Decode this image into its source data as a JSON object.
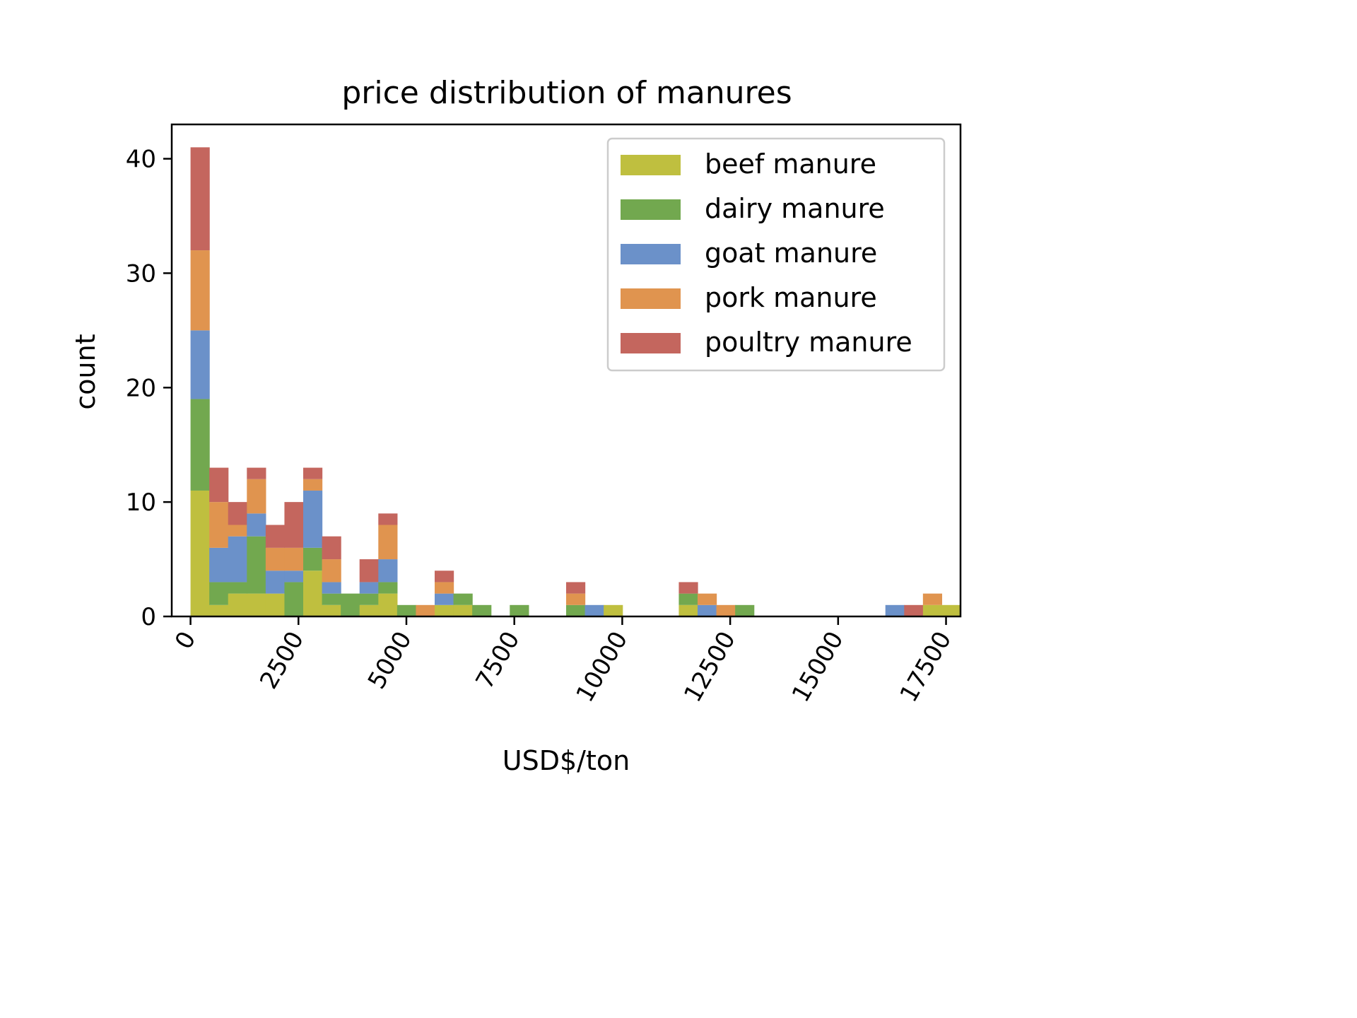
{
  "chart_data": {
    "type": "bar",
    "stacked": true,
    "histogram": true,
    "title": "price distribution of manures",
    "xlabel": "USD$/ton",
    "ylabel": "count",
    "bin_width": 435,
    "bin_start": 0,
    "xlim": [
      -435,
      17835
    ],
    "ylim": [
      0,
      43
    ],
    "xticks": [
      0,
      2500,
      5000,
      7500,
      10000,
      12500,
      15000,
      17500
    ],
    "xtick_labels": [
      "0",
      "2500",
      "5000",
      "7500",
      "10000",
      "12500",
      "15000",
      "17500"
    ],
    "yticks": [
      0,
      10,
      20,
      30,
      40
    ],
    "ytick_labels": [
      "0",
      "10",
      "20",
      "30",
      "40"
    ],
    "legend_position": "top-right",
    "grid": false,
    "series": [
      {
        "name": "beef manure",
        "color": "#bfbf3f",
        "values": [
          11,
          1,
          2,
          2,
          2,
          0,
          4,
          1,
          0,
          1,
          2,
          0,
          0,
          1,
          1,
          0,
          0,
          0,
          0,
          0,
          0,
          0,
          0,
          0,
          0,
          0,
          0,
          0,
          0,
          0,
          0,
          0,
          0,
          0,
          0,
          0,
          0,
          0,
          0,
          1
        ]
      },
      {
        "name": "dairy manure",
        "color": "#72a84f",
        "values": [
          8,
          2,
          1,
          5,
          0,
          3,
          2,
          1,
          2,
          1,
          1,
          1,
          0,
          0,
          1,
          1,
          0,
          1,
          0,
          0,
          0,
          0,
          0,
          0,
          0,
          0,
          0,
          0,
          0,
          0,
          0,
          0,
          0,
          0,
          0,
          0,
          0,
          0,
          0,
          0
        ]
      },
      {
        "name": "goat manure",
        "color": "#6b91c9",
        "values": [
          6,
          3,
          4,
          2,
          2,
          1,
          5,
          1,
          0,
          1,
          2,
          0,
          0,
          1,
          0,
          0,
          0,
          0,
          0,
          0,
          0,
          0,
          0,
          0,
          0,
          0,
          0,
          0,
          0,
          0,
          0,
          0,
          0,
          0,
          0,
          0,
          0,
          0,
          0,
          0
        ]
      },
      {
        "name": "pork manure",
        "color": "#e0944f",
        "values": [
          7,
          4,
          1,
          3,
          2,
          2,
          1,
          2,
          0,
          0,
          3,
          0,
          1,
          1,
          0,
          0,
          0,
          0,
          0,
          0,
          0,
          0,
          0,
          0,
          0,
          0,
          0,
          0,
          0,
          0,
          0,
          0,
          0,
          0,
          0,
          0,
          0,
          0,
          0,
          0
        ]
      },
      {
        "name": "poultry manure",
        "color": "#c4665e",
        "values": [
          9,
          3,
          2,
          1,
          2,
          4,
          1,
          2,
          0,
          2,
          1,
          0,
          0,
          1,
          0,
          0,
          0,
          0,
          0,
          0,
          0,
          0,
          0,
          0,
          0,
          0,
          0,
          0,
          0,
          0,
          0,
          0,
          0,
          0,
          0,
          0,
          0,
          0,
          0,
          0
        ]
      }
    ],
    "sparse_bins": {
      "9570": {
        "dairy manure": 1,
        "pork manure": 1,
        "poultry manure": 1
      },
      "10005": {
        "goat manure": 1
      },
      "10440": {
        "beef manure": 1
      },
      "12615": {
        "beef manure": 1,
        "dairy manure": 1,
        "poultry manure": 1
      },
      "13050": {
        "goat manure": 1,
        "pork manure": 1
      },
      "13485": {
        "pork manure": 1
      },
      "13920": {
        "dairy manure": 1
      },
      "17835": {
        "goat manure": 1
      },
      "18270": {
        "poultry manure": 1
      },
      "18705": {
        "pork manure": 1
      },
      "19140": {
        "beef manure": 1
      }
    }
  }
}
